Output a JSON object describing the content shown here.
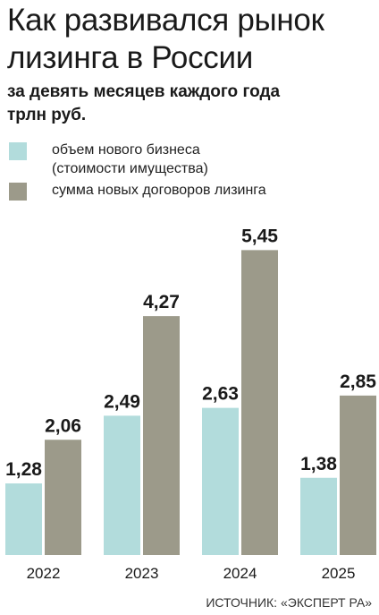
{
  "title": "Как развивался рынок лизинга в России",
  "subtitle_line1": "за девять месяцев каждого года",
  "subtitle_line2": "трлн руб.",
  "source": "ИСТОЧНИК: «ЭКСПЕРТ РА»",
  "colors": {
    "series1": "#b2dcdc",
    "series2": "#9c9a8a"
  },
  "chart_data": {
    "type": "bar",
    "categories": [
      "2022",
      "2023",
      "2024",
      "2025"
    ],
    "series": [
      {
        "name": "объем нового бизнеса (стоимости имущества)",
        "legend_lines": [
          "объем нового бизнеса",
          "(стоимости имущества)"
        ],
        "values": [
          1.28,
          2.49,
          2.63,
          1.38
        ],
        "labels": [
          "1,28",
          "2,49",
          "2,63",
          "1,38"
        ]
      },
      {
        "name": "сумма новых договоров лизинга",
        "legend_lines": [
          "сумма новых договоров лизинга"
        ],
        "values": [
          2.06,
          4.27,
          5.45,
          2.85
        ],
        "labels": [
          "2,06",
          "4,27",
          "5,45",
          "2,85"
        ]
      }
    ],
    "title": "Как развивался рынок лизинга в России",
    "ylabel": "трлн руб.",
    "ylim": [
      0,
      6
    ],
    "grid": false,
    "legend_position": "top-left"
  }
}
